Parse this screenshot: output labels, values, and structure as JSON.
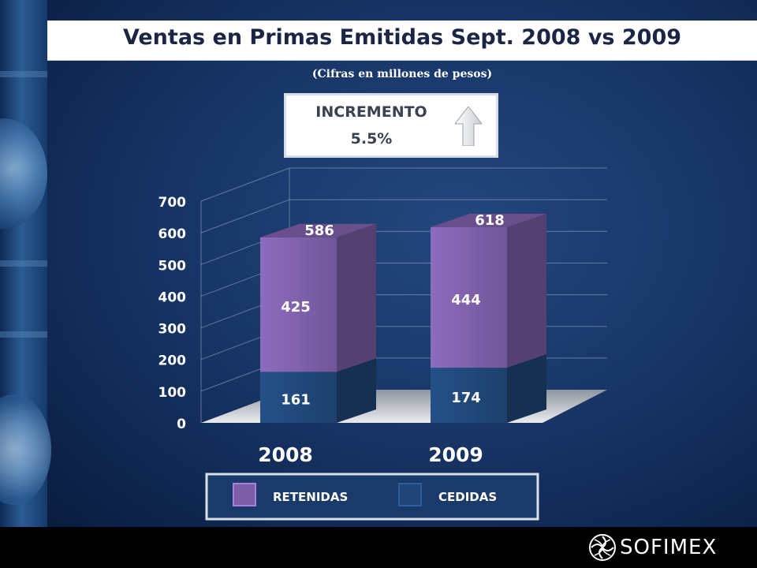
{
  "title": "Ventas en Primas Emitidas Sept. 2008 vs 2009",
  "subtitle": "(Cifras en millones de pesos)",
  "increment": {
    "label": "INCREMENTO",
    "value": "5.5%",
    "icon": "up-arrow-icon"
  },
  "footer": {
    "logo_text": "SOFIMEX",
    "logo_icon": "sofimex-swirl-icon"
  },
  "colors": {
    "retenidas": "#7b5ea6",
    "cedidas": "#1f4677",
    "background": "#173465",
    "text": "#ffffff"
  },
  "chart_data": {
    "type": "bar",
    "stacked": true,
    "categories": [
      "2008",
      "2009"
    ],
    "series": [
      {
        "name": "CEDIDAS",
        "values": [
          161,
          174
        ],
        "color": "#1f4677"
      },
      {
        "name": "RETENIDAS",
        "values": [
          425,
          444
        ],
        "color": "#7b5ea6"
      }
    ],
    "totals": [
      586,
      618
    ],
    "yticks": [
      "0",
      "100",
      "200",
      "300",
      "400",
      "500",
      "600",
      "700"
    ],
    "ylim": [
      0,
      700
    ],
    "grid": true,
    "legend": {
      "position": "bottom",
      "items": [
        "RETENIDAS",
        "CEDIDAS"
      ]
    },
    "title": "",
    "xlabel": "",
    "ylabel": ""
  }
}
